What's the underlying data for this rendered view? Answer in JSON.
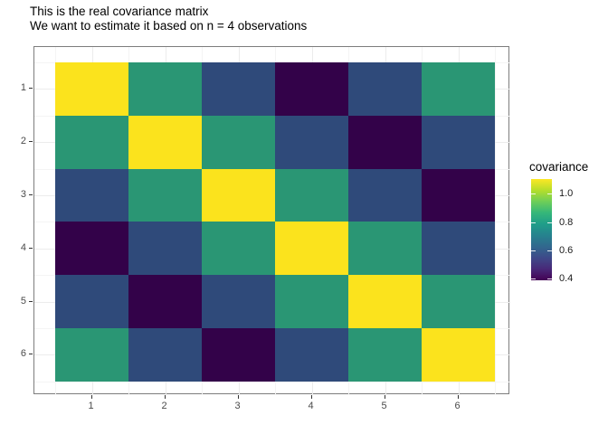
{
  "figure": {
    "title_line1": "This is the real covariance matrix",
    "title_line2": "We want to estimate it based on n = 4 observations"
  },
  "chart_data": {
    "type": "heatmap",
    "title": "This is the real covariance matrix",
    "subtitle": "We want to estimate it based on n = 4 observations",
    "x_tick_labels": [
      "1",
      "2",
      "3",
      "4",
      "5",
      "6"
    ],
    "y_tick_labels": [
      "1",
      "2",
      "3",
      "4",
      "5",
      "6"
    ],
    "matrix_rows_top_to_bottom": [
      [
        1.1,
        0.77,
        0.54,
        0.38,
        0.54,
        0.77
      ],
      [
        0.77,
        1.1,
        0.77,
        0.54,
        0.38,
        0.54
      ],
      [
        0.54,
        0.77,
        1.1,
        0.77,
        0.54,
        0.38
      ],
      [
        0.38,
        0.54,
        0.77,
        1.1,
        0.77,
        0.54
      ],
      [
        0.54,
        0.38,
        0.54,
        0.77,
        1.1,
        0.77
      ],
      [
        0.77,
        0.54,
        0.38,
        0.54,
        0.77,
        1.1
      ]
    ],
    "value_colors": {
      "1.1": "#fbe31d",
      "0.77": "#2a9674",
      "0.54": "#2f4a7a",
      "0.38": "#330249"
    },
    "legend": {
      "title": "covariance",
      "tick_labels": [
        "1.0",
        "0.8",
        "0.6",
        "0.4"
      ],
      "tick_values": [
        1.0,
        0.8,
        0.6,
        0.4
      ],
      "domain": [
        0.39,
        1.104
      ],
      "colormap": "viridis",
      "gradient_stops": [
        "#440154",
        "#482878",
        "#3e4989",
        "#31688e",
        "#26828e",
        "#1f9e89",
        "#35b779",
        "#6ece58",
        "#b5de2b",
        "#fde725"
      ],
      "position": "right"
    },
    "grid": true,
    "panel_border_color": "#7d7d7d"
  }
}
